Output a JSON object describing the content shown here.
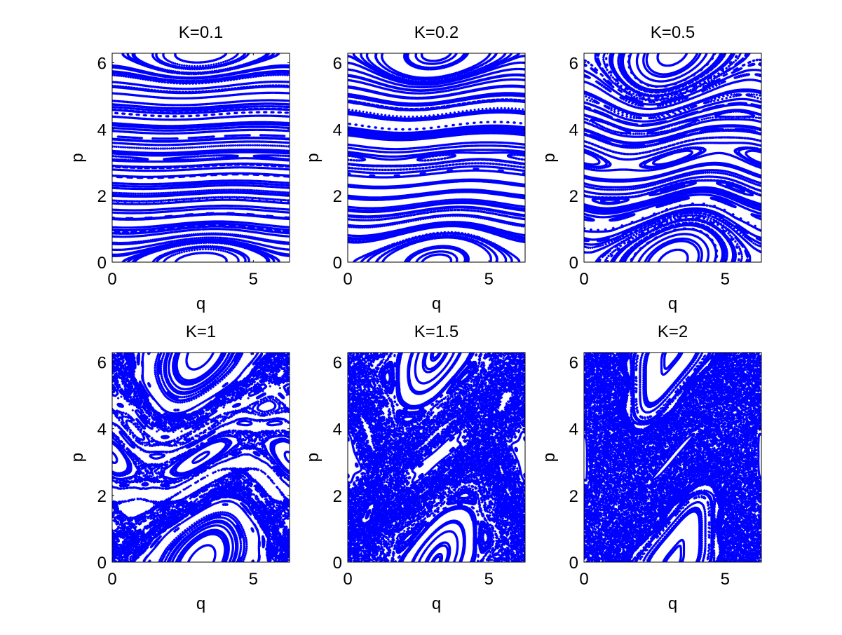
{
  "figure": {
    "background": "#ffffff"
  },
  "style": {
    "marker_color": "#0000ff",
    "axis_color": "#000000"
  },
  "chart_data": [
    {
      "type": "scatter",
      "title": "K=0.1",
      "K": 0.1,
      "xlabel": "q",
      "ylabel": "p",
      "xlim": [
        0,
        6.2832
      ],
      "ylim": [
        0,
        6.2832
      ],
      "xticks": [
        0,
        5
      ],
      "yticks": [
        0,
        2,
        4,
        6
      ],
      "grid": false,
      "marker_color": "#0000ff"
    },
    {
      "type": "scatter",
      "title": "K=0.2",
      "K": 0.2,
      "xlabel": "q",
      "ylabel": "p",
      "xlim": [
        0,
        6.2832
      ],
      "ylim": [
        0,
        6.2832
      ],
      "xticks": [
        0,
        5
      ],
      "yticks": [
        0,
        2,
        4,
        6
      ],
      "grid": false,
      "marker_color": "#0000ff"
    },
    {
      "type": "scatter",
      "title": "K=0.5",
      "K": 0.5,
      "xlabel": "q",
      "ylabel": "p",
      "xlim": [
        0,
        6.2832
      ],
      "ylim": [
        0,
        6.2832
      ],
      "xticks": [
        0,
        5
      ],
      "yticks": [
        0,
        2,
        4,
        6
      ],
      "grid": false,
      "marker_color": "#0000ff"
    },
    {
      "type": "scatter",
      "title": "K=1",
      "K": 1,
      "xlabel": "q",
      "ylabel": "p",
      "xlim": [
        0,
        6.2832
      ],
      "ylim": [
        0,
        6.2832
      ],
      "xticks": [
        0,
        5
      ],
      "yticks": [
        0,
        2,
        4,
        6
      ],
      "grid": false,
      "marker_color": "#0000ff"
    },
    {
      "type": "scatter",
      "title": "K=1.5",
      "K": 1.5,
      "xlabel": "q",
      "ylabel": "p",
      "xlim": [
        0,
        6.2832
      ],
      "ylim": [
        0,
        6.2832
      ],
      "xticks": [
        0,
        5
      ],
      "yticks": [
        0,
        2,
        4,
        6
      ],
      "grid": false,
      "marker_color": "#0000ff"
    },
    {
      "type": "scatter",
      "title": "K=2",
      "K": 2,
      "xlabel": "q",
      "ylabel": "p",
      "xlim": [
        0,
        6.2832
      ],
      "ylim": [
        0,
        6.2832
      ],
      "xticks": [
        0,
        5
      ],
      "yticks": [
        0,
        2,
        4,
        6
      ],
      "grid": false,
      "marker_color": "#0000ff"
    }
  ]
}
